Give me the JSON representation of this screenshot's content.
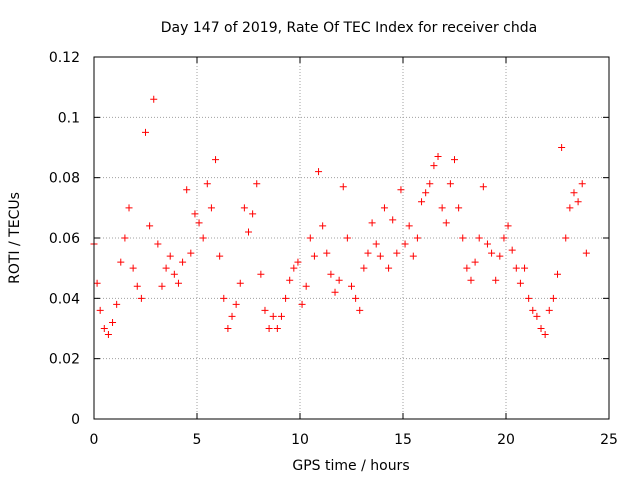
{
  "chart_data": {
    "type": "scatter",
    "title": "Day 147 of 2019, Rate Of TEC Index for receiver chda",
    "xlabel": "GPS time / hours",
    "ylabel": "ROTI / TECUs",
    "xlim": [
      0,
      25
    ],
    "ylim": [
      0,
      0.12
    ],
    "x_ticks": [
      0,
      5,
      10,
      15,
      20,
      25
    ],
    "x_tick_labels": [
      "0",
      "5",
      "10",
      "15",
      "20",
      "25"
    ],
    "y_ticks": [
      0,
      0.02,
      0.04,
      0.06,
      0.08,
      0.1,
      0.12
    ],
    "y_tick_labels": [
      "0",
      "0.02",
      "0.04",
      "0.06",
      "0.08",
      "0.1",
      "0.12"
    ],
    "grid": true,
    "marker": "plus",
    "color": "#ff0000",
    "series": [
      {
        "x": [
          0.0,
          0.15,
          0.3,
          0.5,
          0.7,
          0.9,
          1.1,
          1.3,
          1.5,
          1.7,
          1.9,
          2.1,
          2.3,
          2.5,
          2.7,
          2.9,
          3.1,
          3.3,
          3.5,
          3.7,
          3.9,
          4.1,
          4.3,
          4.5,
          4.7,
          4.9,
          5.1,
          5.3,
          5.5,
          5.7,
          5.9,
          6.1,
          6.3,
          6.5,
          6.7,
          6.9,
          7.1,
          7.3,
          7.5,
          7.7,
          7.9,
          8.1,
          8.3,
          8.5,
          8.7,
          8.9,
          9.1,
          9.3,
          9.5,
          9.7,
          9.9,
          10.1,
          10.3,
          10.5,
          10.7,
          10.9,
          11.1,
          11.3,
          11.5,
          11.7,
          11.9,
          12.1,
          12.3,
          12.5,
          12.7,
          12.9,
          13.1,
          13.3,
          13.5,
          13.7,
          13.9,
          14.1,
          14.3,
          14.5,
          14.7,
          14.9,
          15.1,
          15.3,
          15.5,
          15.7,
          15.9,
          16.1,
          16.3,
          16.5,
          16.7,
          16.9,
          17.1,
          17.3,
          17.5,
          17.7,
          17.9,
          18.1,
          18.3,
          18.5,
          18.7,
          18.9,
          19.1,
          19.3,
          19.5,
          19.7,
          19.9,
          20.1,
          20.3,
          20.5,
          20.7,
          20.9,
          21.1,
          21.3,
          21.5,
          21.7,
          21.9,
          22.1,
          22.3,
          22.5,
          22.7,
          22.9,
          23.1,
          23.3,
          23.5,
          23.7,
          23.9
        ],
        "y": [
          0.058,
          0.045,
          0.036,
          0.03,
          0.028,
          0.032,
          0.038,
          0.052,
          0.06,
          0.07,
          0.05,
          0.044,
          0.04,
          0.095,
          0.064,
          0.106,
          0.058,
          0.044,
          0.05,
          0.054,
          0.048,
          0.045,
          0.052,
          0.076,
          0.055,
          0.068,
          0.065,
          0.06,
          0.078,
          0.07,
          0.086,
          0.054,
          0.04,
          0.03,
          0.034,
          0.038,
          0.045,
          0.07,
          0.062,
          0.068,
          0.078,
          0.048,
          0.036,
          0.03,
          0.034,
          0.03,
          0.034,
          0.04,
          0.046,
          0.05,
          0.052,
          0.038,
          0.044,
          0.06,
          0.054,
          0.082,
          0.064,
          0.055,
          0.048,
          0.042,
          0.046,
          0.077,
          0.06,
          0.044,
          0.04,
          0.036,
          0.05,
          0.055,
          0.065,
          0.058,
          0.054,
          0.07,
          0.05,
          0.066,
          0.055,
          0.076,
          0.058,
          0.064,
          0.054,
          0.06,
          0.072,
          0.075,
          0.078,
          0.084,
          0.087,
          0.07,
          0.065,
          0.078,
          0.086,
          0.07,
          0.06,
          0.05,
          0.046,
          0.052,
          0.06,
          0.077,
          0.058,
          0.055,
          0.046,
          0.054,
          0.06,
          0.064,
          0.056,
          0.05,
          0.045,
          0.05,
          0.04,
          0.036,
          0.034,
          0.03,
          0.028,
          0.036,
          0.04,
          0.048,
          0.09,
          0.06,
          0.07,
          0.075,
          0.072,
          0.078,
          0.055
        ]
      }
    ]
  }
}
